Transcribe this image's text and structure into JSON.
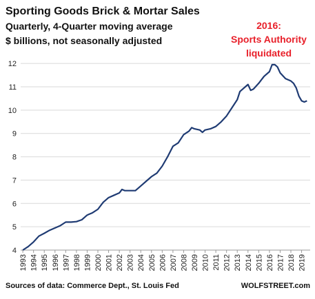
{
  "chart_data": {
    "type": "line",
    "title": "Sporting Goods Brick & Mortar Sales",
    "subtitle": "Quarterly, 4-Quarter moving average",
    "subtitle2": "$ billions, not seasonally adjusted",
    "annotation": [
      "2016:",
      "Sports Authority",
      "liquidated"
    ],
    "source": "Sources of data: Commerce Dept., St. Louis Fed",
    "brand": "WOLFSTREET.com",
    "xlim": [
      1992.8,
      2019.8
    ],
    "xticks": [
      1993,
      1994,
      1995,
      1996,
      1997,
      1998,
      1999,
      2000,
      2001,
      2002,
      2003,
      2004,
      2005,
      2006,
      2007,
      2008,
      2009,
      2010,
      2011,
      2012,
      2013,
      2014,
      2015,
      2016,
      2017,
      2018,
      2019
    ],
    "ylim": [
      4,
      12.3
    ],
    "yticks": [
      4,
      5,
      6,
      7,
      8,
      9,
      10,
      11,
      12
    ],
    "grid": true,
    "series": [
      {
        "name": "Sales",
        "color": "#1f3b73",
        "x": [
          1993,
          1993.5,
          1994,
          1994.5,
          1995,
          1995.5,
          1996,
          1996.5,
          1997,
          1997.5,
          1998,
          1998.5,
          1999,
          1999.5,
          2000,
          2000.5,
          2001,
          2001.5,
          2002,
          2002.25,
          2002.5,
          2003,
          2003.5,
          2004,
          2004.5,
          2005,
          2005.5,
          2006,
          2006.5,
          2007,
          2007.5,
          2008,
          2008.5,
          2008.75,
          2009,
          2009.5,
          2009.75,
          2010,
          2010.5,
          2011,
          2011.5,
          2012,
          2012.5,
          2013,
          2013.25,
          2013.75,
          2014,
          2014.25,
          2014.5,
          2015,
          2015.5,
          2016,
          2016.25,
          2016.5,
          2016.75,
          2017,
          2017.5,
          2018,
          2018.25,
          2018.5,
          2018.75,
          2019,
          2019.25,
          2019.5
        ],
        "values": [
          4.0,
          4.15,
          4.35,
          4.6,
          4.72,
          4.85,
          4.95,
          5.05,
          5.2,
          5.2,
          5.22,
          5.3,
          5.5,
          5.6,
          5.75,
          6.05,
          6.25,
          6.35,
          6.45,
          6.6,
          6.55,
          6.55,
          6.55,
          6.75,
          6.95,
          7.15,
          7.3,
          7.6,
          8.0,
          8.45,
          8.6,
          8.95,
          9.1,
          9.25,
          9.2,
          9.15,
          9.05,
          9.15,
          9.2,
          9.3,
          9.5,
          9.75,
          10.1,
          10.45,
          10.8,
          11.0,
          11.1,
          10.85,
          10.9,
          11.15,
          11.45,
          11.65,
          11.95,
          11.95,
          11.85,
          11.6,
          11.35,
          11.25,
          11.15,
          10.95,
          10.6,
          10.4,
          10.35,
          10.4
        ]
      }
    ]
  }
}
